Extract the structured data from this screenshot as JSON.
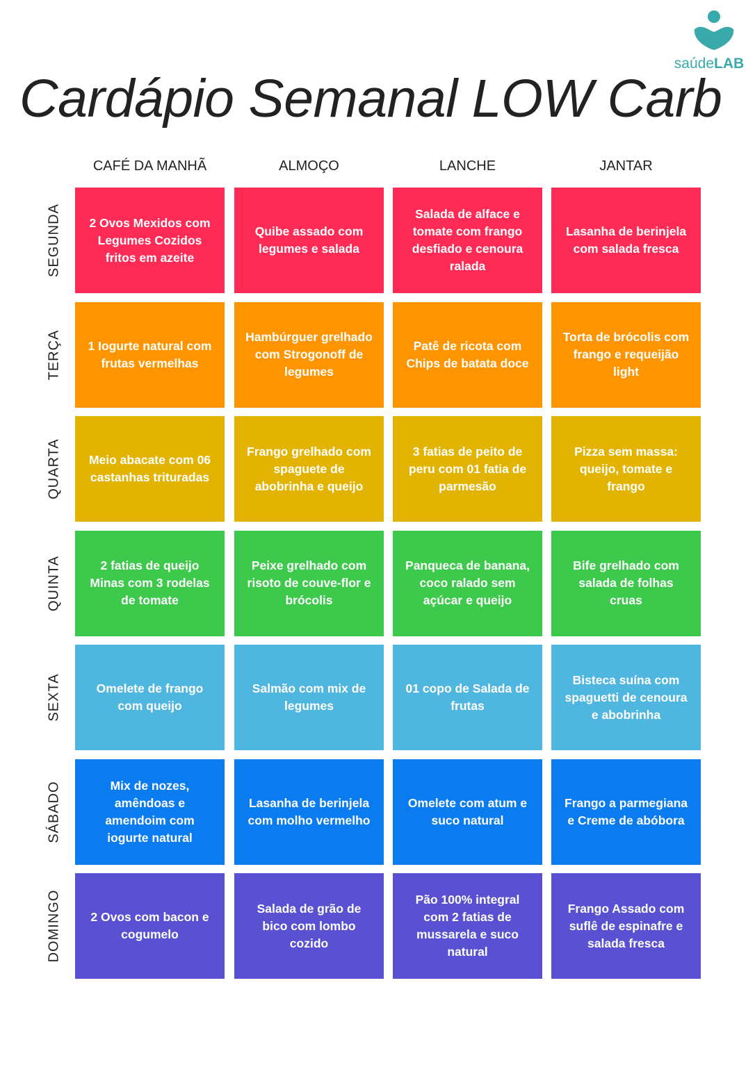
{
  "logo": {
    "brand": "saúde",
    "brand_bold": "LAB"
  },
  "title": "Cardápio Semanal LOW Carb",
  "columns": [
    "CAFÉ DA MANHÃ",
    "ALMOÇO",
    "LANCHE",
    "JANTAR"
  ],
  "rows": [
    {
      "day": "SEGUNDA",
      "meals": [
        "2 Ovos Mexidos com Legumes Cozidos fritos em azeite",
        "Quibe assado com legumes e salada",
        "Salada de alface e tomate com frango desfiado e cenoura ralada",
        "Lasanha de berinjela com salada fresca"
      ]
    },
    {
      "day": "TERÇA",
      "meals": [
        "1 Iogurte natural com frutas vermelhas",
        "Hambúrguer grelhado com Strogonoff de legumes",
        "Patê de ricota com Chips de batata doce",
        "Torta de brócolis com frango e requeijão light"
      ]
    },
    {
      "day": "QUARTA",
      "meals": [
        "Meio abacate com 06 castanhas trituradas",
        "Frango grelhado com spaguete de abobrinha e queijo",
        "3 fatias de peito de peru com 01 fatia de parmesão",
        "Pizza sem massa: queijo, tomate e frango"
      ]
    },
    {
      "day": "QUINTA",
      "meals": [
        "2 fatias de queijo Minas com 3 rodelas de tomate",
        "Peixe grelhado com risoto de couve-flor e brócolis",
        "Panqueca de banana, coco ralado sem açúcar e queijo",
        "Bife grelhado com salada de folhas cruas"
      ]
    },
    {
      "day": "SEXTA",
      "meals": [
        "Omelete de frango com queijo",
        "Salmão com mix de legumes",
        "01 copo de Salada de frutas",
        "Bisteca suína com spaguetti de cenoura e abobrinha"
      ]
    },
    {
      "day": "SÁBADO",
      "meals": [
        "Mix de nozes, amêndoas e amendoim com iogurte natural",
        "Lasanha de berinjela com molho vermelho",
        "Omelete com atum e suco natural",
        "Frango a parmegiana e Creme de abóbora"
      ]
    },
    {
      "day": "DOMINGO",
      "meals": [
        "2 Ovos com bacon e cogumelo",
        "Salada de grão de bico com lombo cozido",
        "Pão 100% integral com 2 fatias de mussarela e suco natural",
        "Frango Assado com suflê de espinafre e salada fresca"
      ]
    }
  ]
}
